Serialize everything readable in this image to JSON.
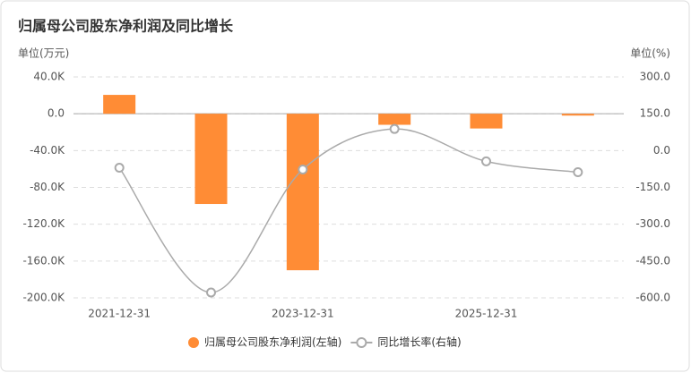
{
  "chart_data": {
    "type": "bar_line",
    "title": "归属母公司股东净利润及同比增长",
    "y_label": "单位(万元)",
    "y2_label": "单位(%)",
    "categories": [
      "2021-12-31",
      null,
      "2023-12-31",
      null,
      "2025-12-31",
      null
    ],
    "series": [
      {
        "name": "归属母公司股东净利润(左轴)",
        "type": "bar",
        "color": "#ff8c35",
        "values": [
          20500,
          -98000,
          -170000,
          -12000,
          -16000,
          -2000
        ]
      },
      {
        "name": "同比增长率(右轴)",
        "type": "line",
        "axis": "y2",
        "color": "#aaaaaa",
        "values": [
          -70,
          -578,
          -77,
          88,
          -44,
          -88
        ]
      }
    ],
    "ylim": [
      -200000,
      40000
    ],
    "yticks": [
      {
        "value": 40000,
        "label": "40.0K"
      },
      {
        "value": 0,
        "label": "0.0"
      },
      {
        "value": -40000,
        "label": "-40.0K"
      },
      {
        "value": -80000,
        "label": "-80.0K"
      },
      {
        "value": -120000,
        "label": "-120.0K"
      },
      {
        "value": -160000,
        "label": "-160.0K"
      },
      {
        "value": -200000,
        "label": "-200.0K"
      }
    ],
    "y2lim": [
      -600,
      300
    ],
    "y2ticks": [
      {
        "value": 300,
        "label": "300.0"
      },
      {
        "value": 150,
        "label": "150.0"
      },
      {
        "value": 0,
        "label": "0.0"
      },
      {
        "value": -150,
        "label": "-150.0"
      },
      {
        "value": -300,
        "label": "-300.0"
      },
      {
        "value": -450,
        "label": "-450.0"
      },
      {
        "value": -600,
        "label": "-600.0"
      }
    ],
    "grid": true
  }
}
